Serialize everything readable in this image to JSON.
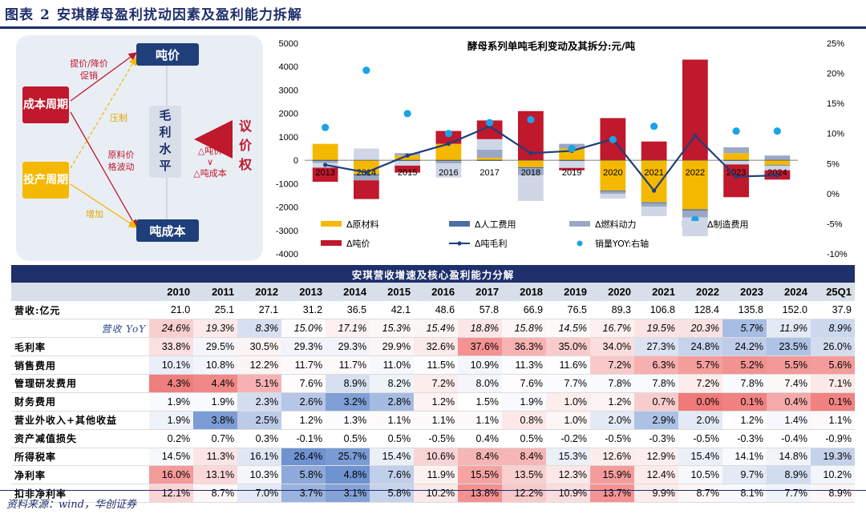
{
  "figure": {
    "label": "图表",
    "number": "2",
    "title": "安琪酵母盈利扰动因素及盈利能力拆解"
  },
  "diagram": {
    "price_node": "吨价",
    "cost_node": "吨成本",
    "cost_cycle": "成本周期",
    "capex_cycle": "投产周期",
    "center_lines": [
      "毛",
      "利",
      "水",
      "平"
    ],
    "bargain_lines": [
      "议",
      "价",
      "权"
    ],
    "edge_price": [
      "提价/降价",
      "促销"
    ],
    "edge_suppress": "压制",
    "edge_raw": [
      "原料价",
      "格波动"
    ],
    "edge_increase": "增加",
    "delta_price": "△吨价",
    "delta_cmp": "∨",
    "delta_cost": "△吨成本"
  },
  "chart_data": {
    "type": "bar",
    "title": "酵母系列单吨毛利变动及其拆分:元/吨",
    "categories": [
      "2013",
      "2014",
      "2015",
      "2016",
      "2017",
      "2018",
      "2019",
      "2020",
      "2021",
      "2022",
      "2023",
      "2024"
    ],
    "ylim": [
      -4000,
      5000
    ],
    "yticks": [
      -4000,
      -3000,
      -2000,
      -1000,
      0,
      1000,
      2000,
      3000,
      4000,
      5000
    ],
    "y2lim": [
      -10,
      25
    ],
    "y2ticks": [
      -10,
      -5,
      0,
      5,
      10,
      15,
      20,
      25
    ],
    "y2_tick_suffix": "%",
    "series": [
      {
        "name": "Δ原材料",
        "kind": "bar",
        "color": "#f5b800",
        "values": [
          700,
          -600,
          200,
          700,
          100,
          -300,
          500,
          -1300,
          -1800,
          -2100,
          300,
          -200
        ]
      },
      {
        "name": "Δ人工费用",
        "kind": "bar",
        "color": "#4a6fa5",
        "values": [
          -40,
          -60,
          -30,
          -40,
          -30,
          -40,
          -30,
          -40,
          -40,
          -50,
          -30,
          -30
        ]
      },
      {
        "name": "Δ燃料动力",
        "kind": "bar",
        "color": "#9aa8c6",
        "values": [
          -80,
          -200,
          100,
          -100,
          350,
          -300,
          200,
          -100,
          -150,
          -300,
          250,
          200
        ]
      },
      {
        "name": "Δ制造费用",
        "kind": "bar",
        "color": "#cfd6e6",
        "values": [
          -200,
          500,
          -200,
          -600,
          450,
          -1100,
          -300,
          -200,
          -400,
          -800,
          -150,
          -200
        ]
      },
      {
        "name": "Δ吨价",
        "kind": "bar",
        "color": "#c0182c",
        "values": [
          -600,
          -800,
          -300,
          550,
          800,
          2100,
          -100,
          1800,
          800,
          4300,
          -1400,
          -400
        ]
      },
      {
        "name": "Δ吨毛利",
        "kind": "line",
        "color": "#1f3f7a",
        "values": [
          -200,
          -520,
          200,
          700,
          1450,
          300,
          400,
          900,
          -1300,
          1050,
          -700,
          -650
        ]
      },
      {
        "name": "销量YOY:右轴",
        "kind": "dot",
        "axis": "right",
        "color": "#1aa3e8",
        "values": [
          11.0,
          20.5,
          13.3,
          10.0,
          11.8,
          12.3,
          7.5,
          9.0,
          11.2,
          -4.3,
          10.4,
          10.4
        ]
      }
    ]
  },
  "table": {
    "caption": "安琪营收增速及核心盈利能力分解",
    "columns": [
      "2010",
      "2011",
      "2012",
      "2013",
      "2014",
      "2015",
      "2016",
      "2017",
      "2018",
      "2019",
      "2020",
      "2021",
      "2022",
      "2023",
      "2024",
      "25Q1"
    ],
    "rows": [
      {
        "label": "营收:亿元",
        "values": [
          "21.0",
          "25.1",
          "27.1",
          "31.2",
          "36.5",
          "42.1",
          "48.6",
          "57.8",
          "66.9",
          "76.5",
          "89.3",
          "106.8",
          "128.4",
          "135.8",
          "152.0",
          "37.9"
        ],
        "colors": []
      },
      {
        "label": "营收 YoY",
        "italic": true,
        "values": [
          "24.6%",
          "19.3%",
          "8.3%",
          "15.0%",
          "17.1%",
          "15.3%",
          "15.4%",
          "18.8%",
          "15.8%",
          "14.5%",
          "16.7%",
          "19.5%",
          "20.3%",
          "5.7%",
          "11.9%",
          "8.9%"
        ],
        "colors": [
          "#f8cfcf",
          "#fde9e9",
          "#d7e0f0",
          "#fdfcfc",
          "#fcf0f0",
          "#fdf6f6",
          "#fdf5f5",
          "#fce6e6",
          "#fdf6f6",
          "#fefafa",
          "#fcf0f0",
          "#fce4e4",
          "#fbe2e2",
          "#a8bde4",
          "#e4eaf5",
          "#ccd8ee"
        ]
      },
      {
        "label": "毛利率",
        "values": [
          "33.8%",
          "29.5%",
          "30.5%",
          "29.3%",
          "29.3%",
          "29.9%",
          "32.6%",
          "37.6%",
          "36.3%",
          "35.0%",
          "34.0%",
          "27.3%",
          "24.8%",
          "24.2%",
          "23.5%",
          "26.0%"
        ],
        "colors": [
          "#fbe0e0",
          "#f4f6fb",
          "#fcf3f3",
          "#f1f4fa",
          "#f1f4fa",
          "#fbf5f5",
          "#fceaea",
          "#f49191",
          "#f7b3b3",
          "#f9cccc",
          "#fcdddd",
          "#dbe3f2",
          "#c5d3ec",
          "#bfcdea",
          "#afc3e6",
          "#d4ddf0"
        ]
      },
      {
        "label": "销售费用",
        "values": [
          "10.1%",
          "10.8%",
          "12.2%",
          "11.7%",
          "11.7%",
          "11.0%",
          "11.5%",
          "10.9%",
          "11.3%",
          "11.6%",
          "7.2%",
          "6.3%",
          "5.7%",
          "5.2%",
          "5.5%",
          "5.6%"
        ],
        "colors": [
          "#e9eef8",
          "#f2f5fb",
          "#fdf4f4",
          "#fefafa",
          "#fefafa",
          "#f6f8fc",
          "#fcfdfe",
          "#f3f6fb",
          "#fbfcfe",
          "#fefefe",
          "#f9c9c9",
          "#f7afaf",
          "#f49d9d",
          "#f29292",
          "#f49999",
          "#f49b9b"
        ]
      },
      {
        "label": "管理研发费用",
        "values": [
          "4.3%",
          "4.4%",
          "5.1%",
          "7.6%",
          "8.9%",
          "8.2%",
          "7.2%",
          "8.0%",
          "7.6%",
          "7.7%",
          "7.8%",
          "7.8%",
          "7.2%",
          "7.8%",
          "7.4%",
          "7.1%"
        ],
        "colors": [
          "#ef7e7e",
          "#f18888",
          "#f6b2b2",
          "#fefcfc",
          "#d7e0f0",
          "#eef2f9",
          "#fcecec",
          "#f4f6fb",
          "#fefcfc",
          "#fbfcfe",
          "#f9fafd",
          "#f9fafd",
          "#fcecec",
          "#f9fafd",
          "#fdf8f8",
          "#fbe8e8"
        ]
      },
      {
        "label": "财务费用",
        "values": [
          "1.9%",
          "1.9%",
          "2.3%",
          "2.6%",
          "3.2%",
          "2.8%",
          "1.2%",
          "1.5%",
          "1.9%",
          "1.0%",
          "1.2%",
          "0.7%",
          "0.0%",
          "0.1%",
          "0.4%",
          "0.1%"
        ],
        "colors": [
          "#f9fafd",
          "#f9fafd",
          "#d4ddf0",
          "#b5c6e6",
          "#7f9fd6",
          "#a6bbe2",
          "#fdf3f3",
          "#ffffff",
          "#f9fafd",
          "#fdeeee",
          "#fdf3f3",
          "#f8cccc",
          "#ef7a7a",
          "#f08282",
          "#f5a9a9",
          "#f08282"
        ]
      },
      {
        "label": "营业外收入+其他收益",
        "values": [
          "1.9%",
          "3.8%",
          "2.5%",
          "1.2%",
          "1.3%",
          "1.1%",
          "1.1%",
          "1.1%",
          "0.8%",
          "1.0%",
          "2.0%",
          "2.9%",
          "2.0%",
          "1.2%",
          "1.4%",
          "1.1%"
        ],
        "colors": [
          "#eef2f9",
          "#7c9cd5",
          "#bccbe8",
          "#fefefe",
          "#fbfcfe",
          "#fdfafa",
          "#fdfafa",
          "#fdfafa",
          "#fce8e8",
          "#fef5f5",
          "#e4eaf5",
          "#adc1e5",
          "#e4eaf5",
          "#fefefe",
          "#f6f8fc",
          "#fdfafa"
        ]
      },
      {
        "label": "资产减值损失",
        "values": [
          "0.2%",
          "0.7%",
          "0.3%",
          "-0.1%",
          "0.5%",
          "0.5%",
          "-0.5%",
          "0.4%",
          "0.5%",
          "-0.2%",
          "-0.5%",
          "-0.3%",
          "-0.5%",
          "-0.3%",
          "-0.4%",
          "-0.9%"
        ],
        "colors": []
      },
      {
        "label": "所得税率",
        "values": [
          "14.5%",
          "11.3%",
          "16.1%",
          "26.4%",
          "25.7%",
          "15.4%",
          "10.6%",
          "8.4%",
          "8.4%",
          "15.3%",
          "12.6%",
          "12.9%",
          "15.4%",
          "14.1%",
          "14.8%",
          "19.3%"
        ],
        "colors": [
          "#f6f8fc",
          "#fbe5e5",
          "#e0e7f4",
          "#6f92d0",
          "#7b9bd4",
          "#eaeff8",
          "#f9d4d4",
          "#f6b6b6",
          "#f6b6b6",
          "#ebf0f8",
          "#fcecec",
          "#fdefef",
          "#eaeff8",
          "#f8fafd",
          "#f0f3fa",
          "#c4d2eb"
        ]
      },
      {
        "label": "净利率",
        "values": [
          "16.0%",
          "13.1%",
          "10.3%",
          "5.8%",
          "4.8%",
          "7.6%",
          "11.9%",
          "15.5%",
          "13.5%",
          "12.3%",
          "15.9%",
          "12.4%",
          "10.5%",
          "9.7%",
          "8.9%",
          "10.2%"
        ],
        "colors": [
          "#f49a9a",
          "#fad8d8",
          "#f5f7fc",
          "#8ea9da",
          "#6f92d0",
          "#c0cfea",
          "#fdf2f2",
          "#f5a3a3",
          "#f9cfcf",
          "#fce8e8",
          "#f49c9c",
          "#fdeaea",
          "#f6f8fc",
          "#e4eaf5",
          "#d2dcef",
          "#f2f5fb"
        ]
      },
      {
        "label": "扣非净利率",
        "values": [
          "12.1%",
          "8.7%",
          "7.0%",
          "3.7%",
          "3.1%",
          "5.8%",
          "10.2%",
          "13.8%",
          "12.2%",
          "10.9%",
          "13.7%",
          "9.9%",
          "8.7%",
          "8.1%",
          "7.7%",
          "8.9%"
        ],
        "colors": [
          "#fad4d4",
          "#fdf7f7",
          "#e3e9f5",
          "#9ab2de",
          "#85a2d6",
          "#c5d3ec",
          "#fbe8e8",
          "#f49090",
          "#f9c9c9",
          "#fbdddd",
          "#f49393",
          "#fcebeb",
          "#fdf7f7",
          "#f8f9fd",
          "#eff3fa",
          "#fef6f6"
        ]
      }
    ]
  },
  "source": "资料来源：wind，华创证券"
}
